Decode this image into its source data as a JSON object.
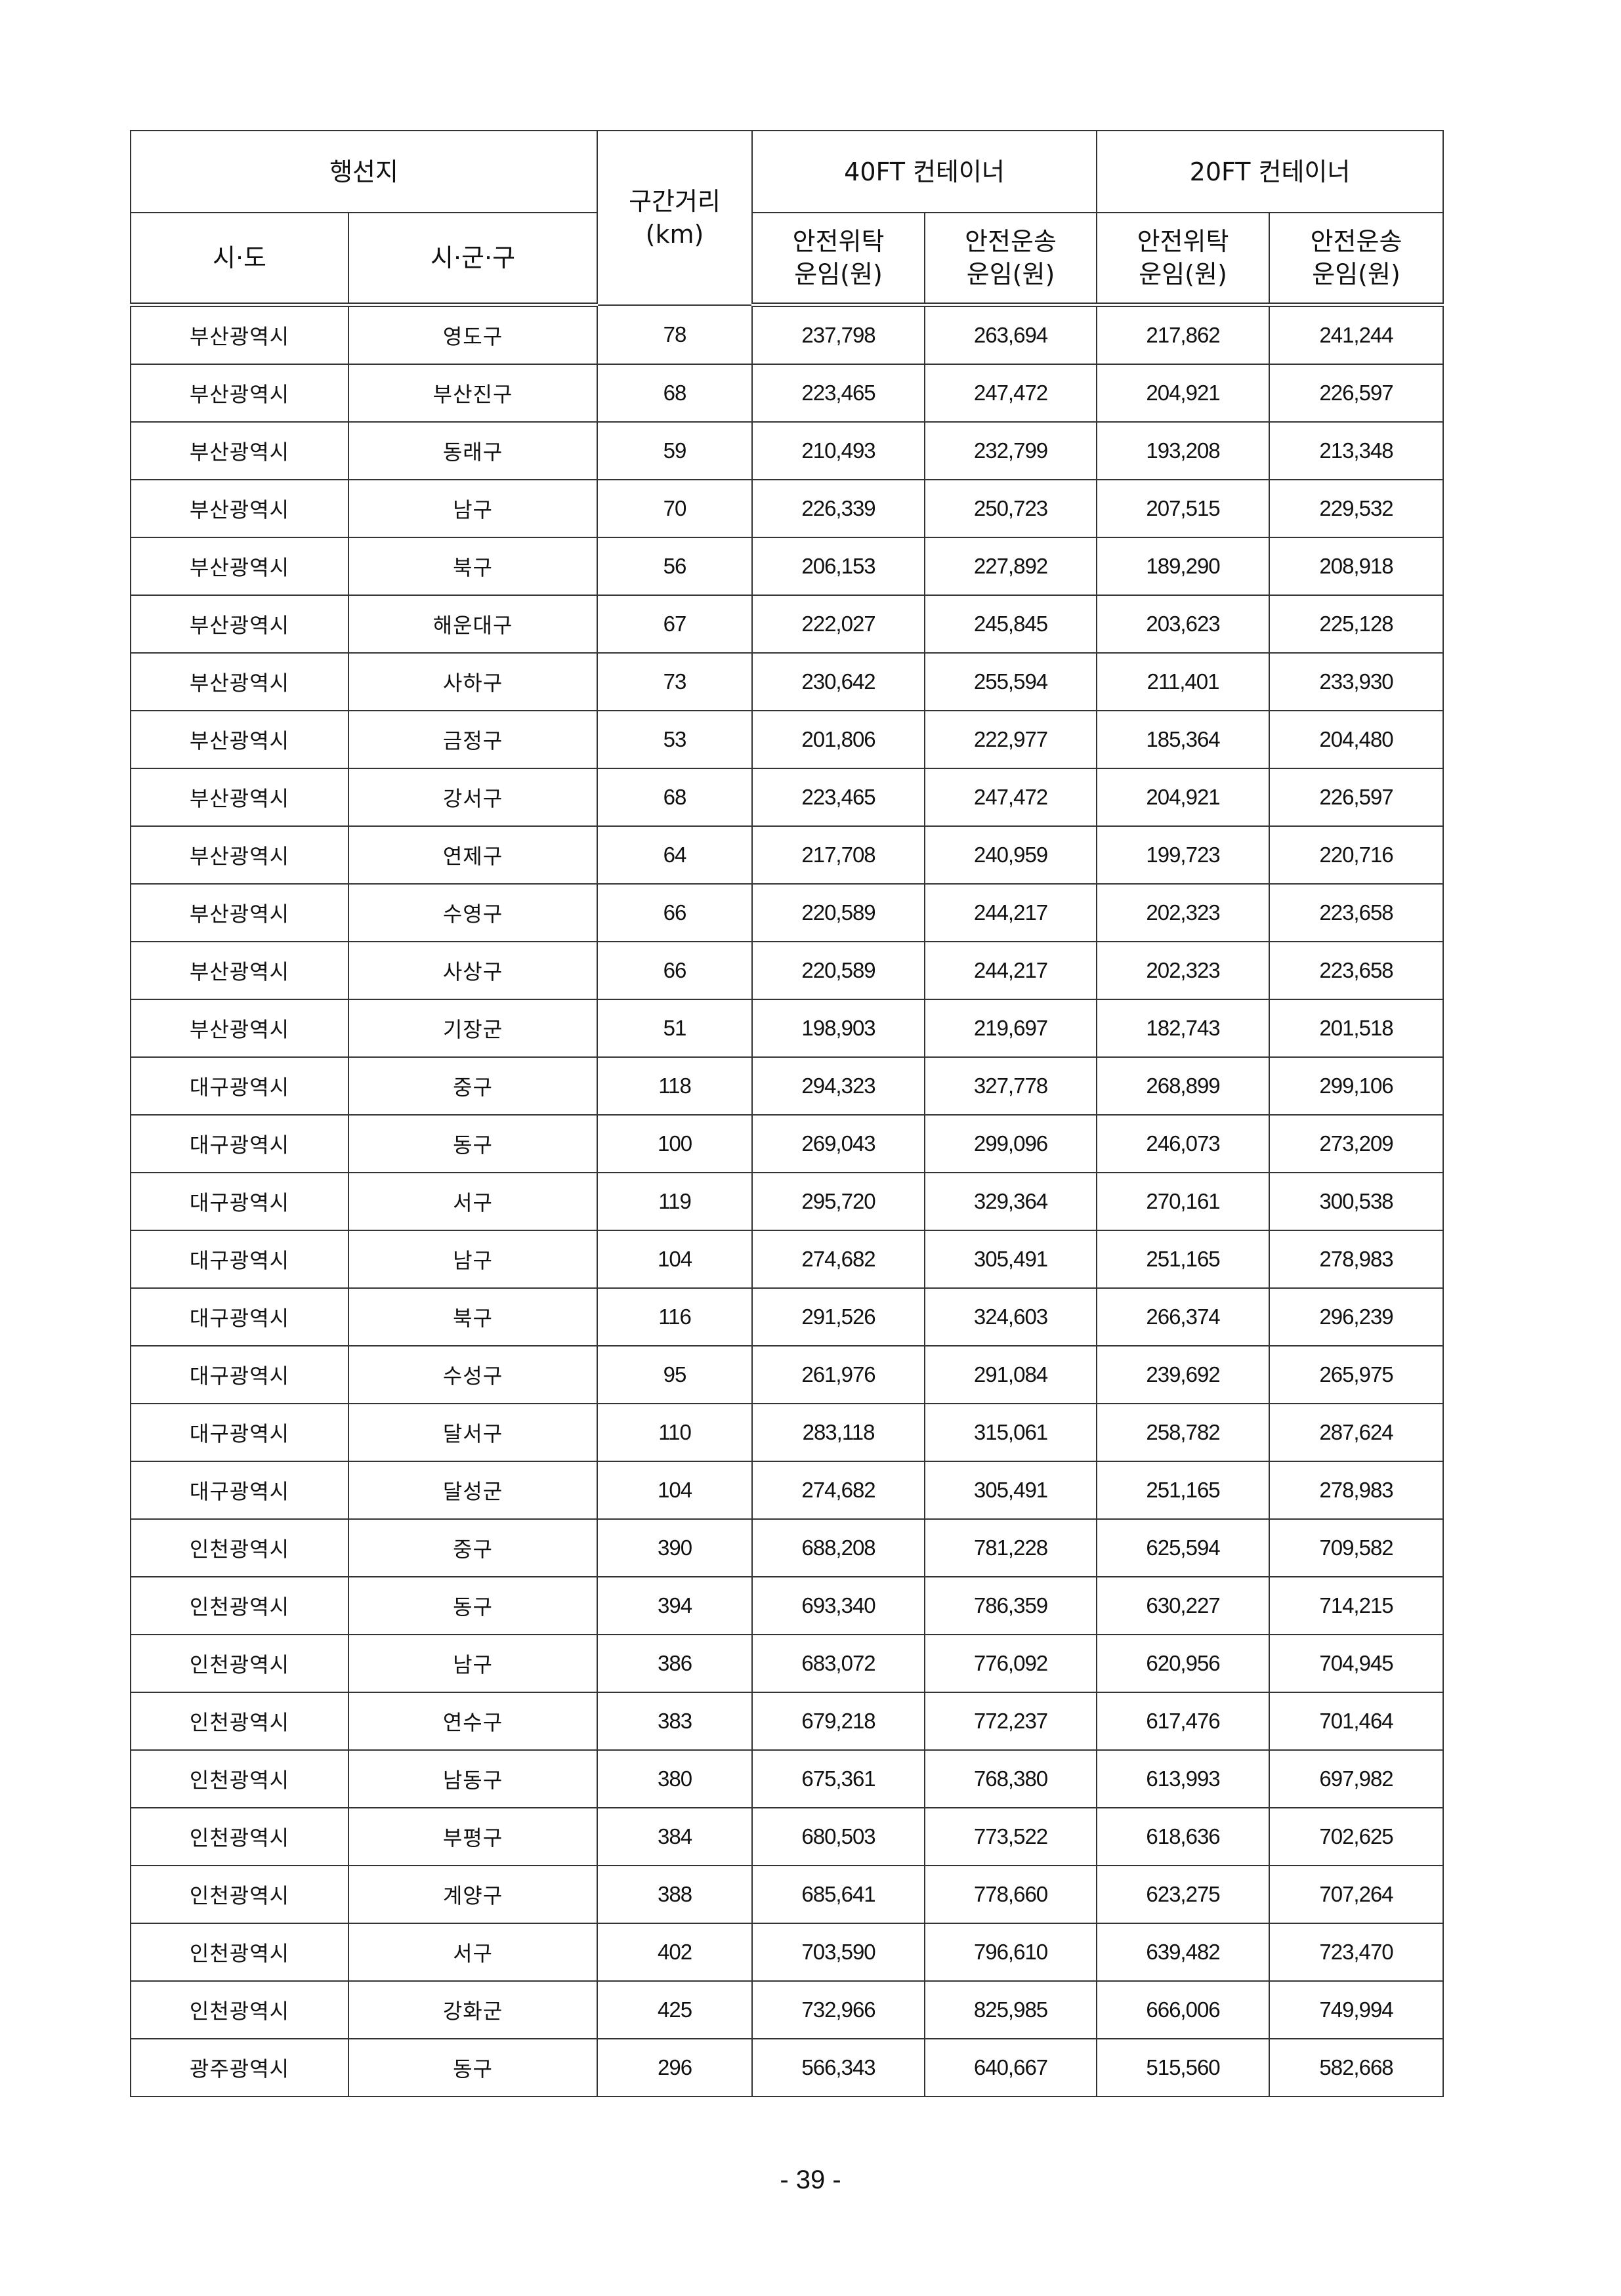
{
  "header": {
    "destination": "행선지",
    "province": "시·도",
    "district": "시·군·구",
    "distance": "구간거리\n(km)",
    "ft40": "40FT 컨테이너",
    "ft20": "20FT 컨테이너",
    "safe_consign": "안전위탁\n운임(원)",
    "safe_transport": "안전운송\n운임(원)"
  },
  "rows": [
    [
      "부산광역시",
      "영도구",
      "78",
      "237,798",
      "263,694",
      "217,862",
      "241,244"
    ],
    [
      "부산광역시",
      "부산진구",
      "68",
      "223,465",
      "247,472",
      "204,921",
      "226,597"
    ],
    [
      "부산광역시",
      "동래구",
      "59",
      "210,493",
      "232,799",
      "193,208",
      "213,348"
    ],
    [
      "부산광역시",
      "남구",
      "70",
      "226,339",
      "250,723",
      "207,515",
      "229,532"
    ],
    [
      "부산광역시",
      "북구",
      "56",
      "206,153",
      "227,892",
      "189,290",
      "208,918"
    ],
    [
      "부산광역시",
      "해운대구",
      "67",
      "222,027",
      "245,845",
      "203,623",
      "225,128"
    ],
    [
      "부산광역시",
      "사하구",
      "73",
      "230,642",
      "255,594",
      "211,401",
      "233,930"
    ],
    [
      "부산광역시",
      "금정구",
      "53",
      "201,806",
      "222,977",
      "185,364",
      "204,480"
    ],
    [
      "부산광역시",
      "강서구",
      "68",
      "223,465",
      "247,472",
      "204,921",
      "226,597"
    ],
    [
      "부산광역시",
      "연제구",
      "64",
      "217,708",
      "240,959",
      "199,723",
      "220,716"
    ],
    [
      "부산광역시",
      "수영구",
      "66",
      "220,589",
      "244,217",
      "202,323",
      "223,658"
    ],
    [
      "부산광역시",
      "사상구",
      "66",
      "220,589",
      "244,217",
      "202,323",
      "223,658"
    ],
    [
      "부산광역시",
      "기장군",
      "51",
      "198,903",
      "219,697",
      "182,743",
      "201,518"
    ],
    [
      "대구광역시",
      "중구",
      "118",
      "294,323",
      "327,778",
      "268,899",
      "299,106"
    ],
    [
      "대구광역시",
      "동구",
      "100",
      "269,043",
      "299,096",
      "246,073",
      "273,209"
    ],
    [
      "대구광역시",
      "서구",
      "119",
      "295,720",
      "329,364",
      "270,161",
      "300,538"
    ],
    [
      "대구광역시",
      "남구",
      "104",
      "274,682",
      "305,491",
      "251,165",
      "278,983"
    ],
    [
      "대구광역시",
      "북구",
      "116",
      "291,526",
      "324,603",
      "266,374",
      "296,239"
    ],
    [
      "대구광역시",
      "수성구",
      "95",
      "261,976",
      "291,084",
      "239,692",
      "265,975"
    ],
    [
      "대구광역시",
      "달서구",
      "110",
      "283,118",
      "315,061",
      "258,782",
      "287,624"
    ],
    [
      "대구광역시",
      "달성군",
      "104",
      "274,682",
      "305,491",
      "251,165",
      "278,983"
    ],
    [
      "인천광역시",
      "중구",
      "390",
      "688,208",
      "781,228",
      "625,594",
      "709,582"
    ],
    [
      "인천광역시",
      "동구",
      "394",
      "693,340",
      "786,359",
      "630,227",
      "714,215"
    ],
    [
      "인천광역시",
      "남구",
      "386",
      "683,072",
      "776,092",
      "620,956",
      "704,945"
    ],
    [
      "인천광역시",
      "연수구",
      "383",
      "679,218",
      "772,237",
      "617,476",
      "701,464"
    ],
    [
      "인천광역시",
      "남동구",
      "380",
      "675,361",
      "768,380",
      "613,993",
      "697,982"
    ],
    [
      "인천광역시",
      "부평구",
      "384",
      "680,503",
      "773,522",
      "618,636",
      "702,625"
    ],
    [
      "인천광역시",
      "계양구",
      "388",
      "685,641",
      "778,660",
      "623,275",
      "707,264"
    ],
    [
      "인천광역시",
      "서구",
      "402",
      "703,590",
      "796,610",
      "639,482",
      "723,470"
    ],
    [
      "인천광역시",
      "강화군",
      "425",
      "732,966",
      "825,985",
      "666,006",
      "749,994"
    ],
    [
      "광주광역시",
      "동구",
      "296",
      "566,343",
      "640,667",
      "515,560",
      "582,668"
    ]
  ],
  "page_number": "- 39 -"
}
